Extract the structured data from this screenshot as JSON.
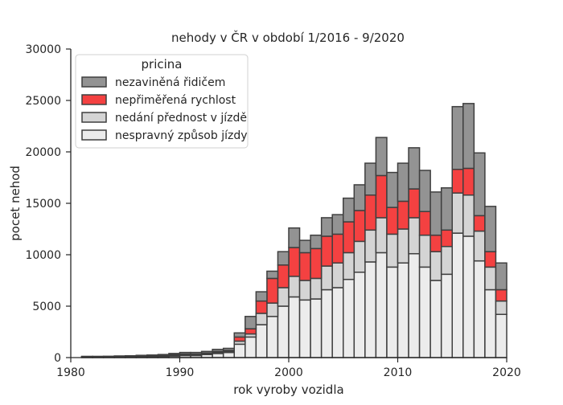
{
  "chart_data": {
    "type": "bar",
    "stacked": true,
    "title": "nehody v ČR v období 1/2016 - 9/2020",
    "xlabel": "rok vyroby vozidla",
    "ylabel": "pocet nehod",
    "xlim": [
      1980,
      2020
    ],
    "ylim": [
      0,
      30000
    ],
    "xticks": [
      "1980",
      "1990",
      "2000",
      "2010",
      "2020"
    ],
    "yticks": [
      "0",
      "5000",
      "10000",
      "15000",
      "20000",
      "25000",
      "30000"
    ],
    "grid": false,
    "legend": {
      "title": "pricina",
      "position": "top-left"
    },
    "colors": {
      "nezavinena": "#939393",
      "neprimerena": "#f44141",
      "nedani": "#d4d4d4",
      "nespravny": "#ececec",
      "edge": "#3f3f3f"
    },
    "x": [
      1981,
      1982,
      1983,
      1984,
      1985,
      1986,
      1987,
      1988,
      1989,
      1990,
      1991,
      1992,
      1993,
      1994,
      1995,
      1996,
      1997,
      1998,
      1999,
      2000,
      2001,
      2002,
      2003,
      2004,
      2005,
      2006,
      2007,
      2008,
      2009,
      2010,
      2011,
      2012,
      2013,
      2014,
      2015,
      2016,
      2017,
      2018,
      2019
    ],
    "series": [
      {
        "name": "nespravný způsob jízdy",
        "key": "nespravny",
        "values": [
          50,
          50,
          50,
          60,
          70,
          90,
          100,
          120,
          150,
          200,
          200,
          300,
          400,
          500,
          1300,
          2000,
          3200,
          4000,
          5000,
          5900,
          5600,
          5700,
          6600,
          6800,
          7600,
          8300,
          9300,
          10200,
          8800,
          9200,
          10100,
          8800,
          7500,
          8100,
          12100,
          11800,
          9400,
          6600,
          4200
        ]
      },
      {
        "name": "nedání přednost v jízdě",
        "key": "nedani",
        "values": [
          30,
          30,
          30,
          40,
          40,
          50,
          50,
          60,
          80,
          100,
          100,
          100,
          100,
          100,
          300,
          300,
          1100,
          1300,
          1800,
          2000,
          1900,
          2000,
          2300,
          2400,
          2600,
          3000,
          3100,
          3400,
          3200,
          3300,
          3500,
          3100,
          2800,
          2700,
          3900,
          4000,
          2900,
          2200,
          1300
        ]
      },
      {
        "name": "nepřiměřená rychlost",
        "key": "neprimerena",
        "values": [
          20,
          20,
          20,
          30,
          30,
          40,
          50,
          60,
          70,
          50,
          50,
          50,
          100,
          100,
          400,
          500,
          1200,
          2400,
          2200,
          2800,
          2700,
          2900,
          2900,
          2800,
          3000,
          3000,
          3400,
          4100,
          2600,
          2700,
          2800,
          2300,
          1600,
          1600,
          2300,
          2600,
          1500,
          1500,
          1100
        ]
      },
      {
        "name": "nezaviněná řidičem",
        "key": "nezavinena",
        "values": [
          20,
          20,
          30,
          30,
          40,
          40,
          50,
          60,
          100,
          150,
          150,
          150,
          200,
          200,
          400,
          1200,
          900,
          700,
          1300,
          1900,
          1200,
          1300,
          1800,
          1900,
          2300,
          2500,
          3100,
          3700,
          3400,
          3700,
          4000,
          4000,
          4200,
          4100,
          6100,
          6300,
          6100,
          4400,
          2600
        ]
      }
    ],
    "legend_order": [
      "nezavinena",
      "neprimerena",
      "nedani",
      "nespravny"
    ]
  }
}
